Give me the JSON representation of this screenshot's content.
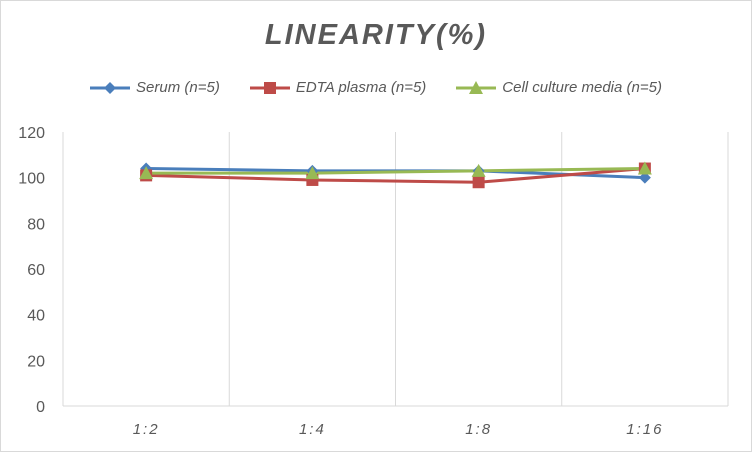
{
  "chart_data": {
    "type": "line",
    "title": "LINEARITY(%)",
    "categories": [
      "1:2",
      "1:4",
      "1:8",
      "1:16"
    ],
    "ylim": [
      0,
      120
    ],
    "yticks": [
      0,
      20,
      40,
      60,
      80,
      100,
      120
    ],
    "grid": "vertical",
    "legend": "top",
    "series": [
      {
        "name": "Serum (n=5)",
        "color": "#4a7ebb",
        "marker": "diamond",
        "values": [
          104,
          103,
          103,
          100
        ]
      },
      {
        "name": "EDTA plasma (n=5)",
        "color": "#be4b48",
        "marker": "square",
        "values": [
          101,
          99,
          98,
          104
        ]
      },
      {
        "name": "Cell culture media (n=5)",
        "color": "#98b954",
        "marker": "triangle",
        "values": [
          102,
          102,
          103,
          104
        ]
      }
    ]
  }
}
